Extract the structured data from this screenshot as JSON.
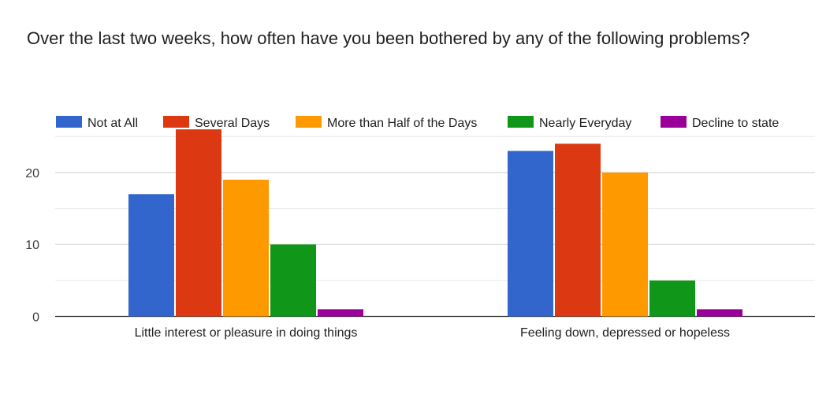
{
  "chart_data": {
    "type": "bar",
    "title": "Over the last two weeks, how often have you been bothered by any of the following problems?",
    "xlabel": "",
    "ylabel": "",
    "categories": [
      "Little interest or pleasure in doing things",
      "Feeling down, depressed or hopeless"
    ],
    "series": [
      {
        "name": "Not at All",
        "color": "#3366cc",
        "values": [
          17,
          23
        ]
      },
      {
        "name": "Several Days",
        "color": "#dc3912",
        "values": [
          26,
          24
        ]
      },
      {
        "name": "More than Half of the Days",
        "color": "#ff9900",
        "values": [
          19,
          20
        ]
      },
      {
        "name": "Nearly Everyday",
        "color": "#109618",
        "values": [
          10,
          5
        ]
      },
      {
        "name": "Decline to state",
        "color": "#990099",
        "values": [
          1,
          1
        ]
      }
    ],
    "ylim": [
      0,
      25
    ],
    "yticks": [
      0,
      10,
      20
    ],
    "grid": true,
    "legend_position": "top"
  }
}
